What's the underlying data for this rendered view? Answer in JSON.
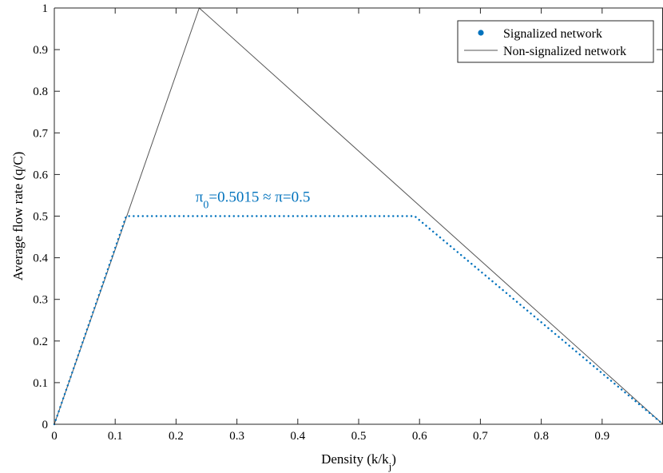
{
  "chart_data": {
    "type": "line",
    "xlabel": {
      "main": "Density (k/k",
      "sub": "j",
      "close": ")"
    },
    "ylabel": "Average flow rate (q/C)",
    "xlim": [
      0,
      1
    ],
    "ylim": [
      0,
      1
    ],
    "x_ticks": [
      0,
      0.1,
      0.2,
      0.3,
      0.4,
      0.5,
      0.6,
      0.7,
      0.8,
      0.9
    ],
    "x_tick_labels": [
      "0",
      "0.1",
      "0.2",
      "0.3",
      "0.4",
      "0.5",
      "0.6",
      "0.7",
      "0.8",
      "0.9"
    ],
    "y_ticks": [
      0,
      0.1,
      0.2,
      0.3,
      0.4,
      0.5,
      0.6,
      0.7,
      0.8,
      0.9,
      1
    ],
    "y_tick_labels": [
      "0",
      "0.1",
      "0.2",
      "0.3",
      "0.4",
      "0.5",
      "0.6",
      "0.7",
      "0.8",
      "0.9",
      "1"
    ],
    "grid": false,
    "legend_position": "top-right",
    "series": [
      {
        "name": "Signalized network",
        "style": "dotted",
        "color": "#0072BD",
        "points": [
          [
            0,
            0
          ],
          [
            0.118,
            0.5
          ],
          [
            0.592,
            0.5
          ],
          [
            1.0,
            0
          ]
        ]
      },
      {
        "name": "Non-signalized network",
        "style": "solid",
        "color": "#555555",
        "points": [
          [
            0,
            0
          ],
          [
            0.238,
            1.0
          ],
          [
            1.0,
            0
          ]
        ]
      }
    ],
    "annotations": [
      {
        "text_pi": "π",
        "text_sub": "0",
        "text_rest": "=0.5015 ≈ π=0.5",
        "x": 0.232,
        "y": 0.535,
        "color": "#0072BD"
      }
    ]
  }
}
